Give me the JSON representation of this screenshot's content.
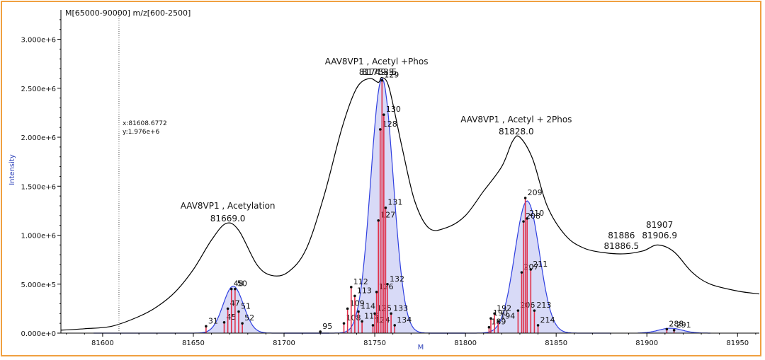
{
  "chart_data": {
    "type": "line",
    "header": "M[65000-90000] m/z[600-2500]",
    "xlabel": "M",
    "ylabel": "Intensity",
    "xlim": [
      81577,
      81962
    ],
    "ylim": [
      0,
      3300000
    ],
    "x_ticks": [
      "81600",
      "81650",
      "81700",
      "81750",
      "81800",
      "81850",
      "81900",
      "81950"
    ],
    "x_tick_values": [
      81600,
      81650,
      81700,
      81750,
      81800,
      81850,
      81900,
      81950
    ],
    "y_ticks": [
      "0.000e+0",
      "5.000e+5",
      "1.000e+6",
      "1.500e+6",
      "2.000e+6",
      "2.500e+6",
      "3.000e+6"
    ],
    "y_tick_values": [
      0,
      500000,
      1000000,
      1500000,
      2000000,
      2500000,
      3000000
    ],
    "cursor": {
      "x_value": 81609,
      "x_text": "x:81608.6772",
      "y_text": "y:1.976e+6"
    },
    "spectrum": [
      [
        81577,
        30000
      ],
      [
        81590,
        45000
      ],
      [
        81605,
        70000
      ],
      [
        81620,
        170000
      ],
      [
        81630,
        270000
      ],
      [
        81640,
        420000
      ],
      [
        81650,
        650000
      ],
      [
        81660,
        950000
      ],
      [
        81668,
        1120000
      ],
      [
        81675,
        1050000
      ],
      [
        81685,
        700000
      ],
      [
        81693,
        590000
      ],
      [
        81702,
        620000
      ],
      [
        81712,
        850000
      ],
      [
        81722,
        1400000
      ],
      [
        81732,
        2100000
      ],
      [
        81740,
        2500000
      ],
      [
        81747,
        2600000
      ],
      [
        81752,
        2560000
      ],
      [
        81754,
        2610000
      ],
      [
        81758,
        2500000
      ],
      [
        81765,
        1900000
      ],
      [
        81772,
        1350000
      ],
      [
        81780,
        1070000
      ],
      [
        81790,
        1080000
      ],
      [
        81800,
        1200000
      ],
      [
        81810,
        1450000
      ],
      [
        81820,
        1700000
      ],
      [
        81826,
        1960000
      ],
      [
        81830,
        2000000
      ],
      [
        81837,
        1780000
      ],
      [
        81845,
        1300000
      ],
      [
        81855,
        1000000
      ],
      [
        81865,
        870000
      ],
      [
        81877,
        820000
      ],
      [
        81888,
        810000
      ],
      [
        81898,
        840000
      ],
      [
        81906,
        900000
      ],
      [
        81915,
        830000
      ],
      [
        81925,
        620000
      ],
      [
        81935,
        500000
      ],
      [
        81950,
        430000
      ],
      [
        81962,
        400000
      ]
    ],
    "fits": [
      {
        "center": 81672,
        "amplitude": 480000,
        "sigma": 5.6,
        "from": 81595,
        "to": 81725
      },
      {
        "center": 81754,
        "amplitude": 2600000,
        "sigma": 6.2,
        "from": 81700,
        "to": 81800
      },
      {
        "center": 81834,
        "amplitude": 1350000,
        "sigma": 6.8,
        "from": 81780,
        "to": 81880
      },
      {
        "center": 81913,
        "amplitude": 50000,
        "sigma": 6.5,
        "from": 81895,
        "to": 81935
      }
    ],
    "annotations": [
      {
        "name": "AAV8VP1 , Acetylation",
        "mass": "81669.0",
        "x": 81669
      },
      {
        "name": "AAV8VP1 , Acetyl +Phos",
        "mass": "81749.5",
        "mass_overlap": "81753.5",
        "x": 81751
      },
      {
        "name": "AAV8VP1 , Acetyl + 2Phos",
        "mass": "81828.0",
        "x": 81828
      },
      {
        "name": "81886",
        "mass": "81886.5",
        "x": 81886
      },
      {
        "name": "81907",
        "mass": "81906.9",
        "x": 81907
      }
    ],
    "sticks": [
      {
        "label": "31",
        "x": 81657,
        "y": 70000
      },
      {
        "label": "45",
        "x": 81667,
        "y": 110000
      },
      {
        "label": "47",
        "x": 81669,
        "y": 250000
      },
      {
        "label": "48",
        "x": 81671,
        "y": 450000
      },
      {
        "label": "50",
        "x": 81673,
        "y": 450000
      },
      {
        "label": "51",
        "x": 81675,
        "y": 220000
      },
      {
        "label": "52",
        "x": 81677,
        "y": 100000
      },
      {
        "label": "95",
        "x": 81720,
        "y": 15000
      },
      {
        "label": "108",
        "x": 81733,
        "y": 100000
      },
      {
        "label": "109",
        "x": 81735,
        "y": 250000
      },
      {
        "label": "112",
        "x": 81737,
        "y": 470000
      },
      {
        "label": "113",
        "x": 81739,
        "y": 380000
      },
      {
        "label": "114",
        "x": 81741,
        "y": 220000
      },
      {
        "label": "115",
        "x": 81743,
        "y": 120000
      },
      {
        "label": "124",
        "x": 81749,
        "y": 80000
      },
      {
        "label": "125",
        "x": 81750,
        "y": 200000
      },
      {
        "label": "126",
        "x": 81751,
        "y": 420000
      },
      {
        "label": "127",
        "x": 81752,
        "y": 1150000
      },
      {
        "label": "128",
        "x": 81753,
        "y": 2080000
      },
      {
        "label": "129",
        "x": 81754,
        "y": 2580000
      },
      {
        "label": "130",
        "x": 81755,
        "y": 2230000
      },
      {
        "label": "131",
        "x": 81756,
        "y": 1280000
      },
      {
        "label": "132",
        "x": 81757,
        "y": 500000
      },
      {
        "label": "133",
        "x": 81759,
        "y": 200000
      },
      {
        "label": "134",
        "x": 81761,
        "y": 80000
      },
      {
        "label": "189",
        "x": 81813,
        "y": 60000
      },
      {
        "label": "190",
        "x": 81814,
        "y": 150000
      },
      {
        "label": "192",
        "x": 81816,
        "y": 200000
      },
      {
        "label": "194",
        "x": 81818,
        "y": 120000
      },
      {
        "label": "206",
        "x": 81829,
        "y": 230000
      },
      {
        "label": "207",
        "x": 81831,
        "y": 620000
      },
      {
        "label": "208",
        "x": 81832,
        "y": 1140000
      },
      {
        "label": "209",
        "x": 81833,
        "y": 1380000
      },
      {
        "label": "210",
        "x": 81834,
        "y": 1170000
      },
      {
        "label": "211",
        "x": 81836,
        "y": 650000
      },
      {
        "label": "213",
        "x": 81838,
        "y": 230000
      },
      {
        "label": "214",
        "x": 81840,
        "y": 80000
      },
      {
        "label": "288",
        "x": 81911,
        "y": 40000
      },
      {
        "label": "291",
        "x": 81915,
        "y": 30000
      }
    ],
    "colors": {
      "spectrum": "#000000",
      "fit_fill": "#d4d6f6",
      "fit_stroke": "#2f3fe0",
      "stick": "#e0304a",
      "stick_top": "#22aa22",
      "axis": "#000000",
      "frame": "#f0a040"
    }
  }
}
